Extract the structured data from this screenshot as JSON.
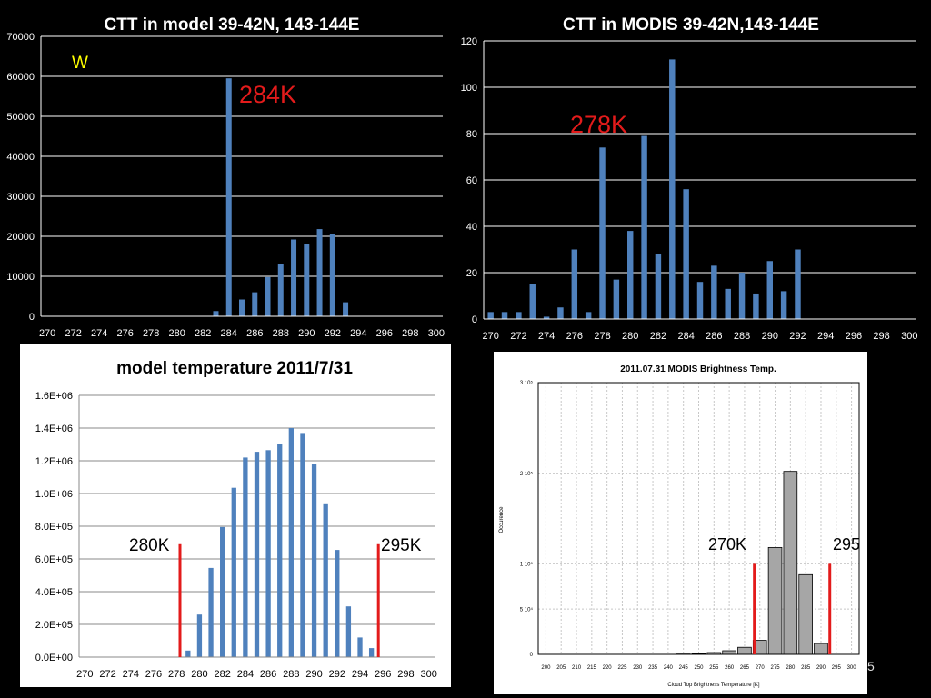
{
  "page_number": "5",
  "colors": {
    "bar_blue": "#4f81bd",
    "bar_gray": "#a6a6a6",
    "marker_red": "#e31b1b",
    "annotation_red": "#e31b1b",
    "annotation_yellow": "#ffff00"
  },
  "chart_data": [
    {
      "id": "model-ctt",
      "type": "bar",
      "title": "CTT in model 39-42N, 143-144E",
      "xlabel": "",
      "ylabel": "",
      "x": [
        270,
        271,
        272,
        273,
        274,
        275,
        276,
        277,
        278,
        279,
        280,
        281,
        282,
        283,
        284,
        285,
        286,
        287,
        288,
        289,
        290,
        291,
        292,
        293,
        294,
        295,
        296,
        297,
        298,
        299,
        300
      ],
      "values": [
        0,
        0,
        0,
        0,
        0,
        0,
        0,
        0,
        0,
        0,
        0,
        0,
        0,
        1300,
        59500,
        4200,
        6000,
        9800,
        13000,
        19200,
        18000,
        21800,
        20500,
        3500,
        0,
        0,
        0,
        0,
        0,
        0,
        0
      ],
      "ylim": [
        0,
        70000
      ],
      "yticks": [
        0,
        10000,
        20000,
        30000,
        40000,
        50000,
        60000,
        70000
      ],
      "ytick_labels": [
        "0",
        "10000",
        "20000",
        "30000",
        "40000",
        "50000",
        "60000",
        "70000"
      ],
      "xticks": [
        270,
        272,
        274,
        276,
        278,
        280,
        282,
        284,
        286,
        288,
        290,
        292,
        294,
        296,
        298,
        300
      ],
      "xtick_labels": [
        "270",
        "272",
        "274",
        "276",
        "278",
        "280",
        "282",
        "284",
        "286",
        "288",
        "290",
        "292",
        "294",
        "296",
        "298",
        "300"
      ],
      "grid": true,
      "annotations": [
        {
          "text": "284K",
          "color": "red"
        },
        {
          "text": "W",
          "color": "yellow"
        }
      ],
      "markers": []
    },
    {
      "id": "modis-ctt",
      "type": "bar",
      "title": "CTT in MODIS 39-42N,143-144E",
      "xlabel": "",
      "ylabel": "",
      "x": [
        270,
        271,
        272,
        273,
        274,
        275,
        276,
        277,
        278,
        279,
        280,
        281,
        282,
        283,
        284,
        285,
        286,
        287,
        288,
        289,
        290,
        291,
        292,
        293,
        294,
        295,
        296,
        297,
        298,
        299,
        300
      ],
      "values": [
        3,
        3,
        3,
        15,
        1,
        5,
        30,
        3,
        74,
        17,
        38,
        79,
        28,
        112,
        56,
        16,
        23,
        13,
        20,
        11,
        25,
        12,
        30,
        0,
        0,
        0,
        0,
        0,
        0,
        0,
        0
      ],
      "ylim": [
        0,
        120
      ],
      "yticks": [
        0,
        20,
        40,
        60,
        80,
        100,
        120
      ],
      "ytick_labels": [
        "0",
        "20",
        "40",
        "60",
        "80",
        "100",
        "120"
      ],
      "xticks": [
        270,
        272,
        274,
        276,
        278,
        280,
        282,
        284,
        286,
        288,
        290,
        292,
        294,
        296,
        298,
        300
      ],
      "xtick_labels": [
        "270",
        "272",
        "274",
        "276",
        "278",
        "280",
        "282",
        "284",
        "286",
        "288",
        "290",
        "292",
        "294",
        "296",
        "298",
        "300"
      ],
      "grid": true,
      "annotations": [
        {
          "text": "278K",
          "color": "red"
        }
      ],
      "markers": []
    },
    {
      "id": "model-temperature",
      "type": "bar",
      "title": "model temperature 2011/7/31",
      "xlabel": "",
      "ylabel": "",
      "x": [
        270,
        271,
        272,
        273,
        274,
        275,
        276,
        277,
        278,
        279,
        280,
        281,
        282,
        283,
        284,
        285,
        286,
        287,
        288,
        289,
        290,
        291,
        292,
        293,
        294,
        295,
        296,
        297,
        298,
        299,
        300
      ],
      "values": [
        0,
        0,
        0,
        0,
        0,
        0,
        0,
        0,
        0,
        40000,
        260000,
        545000,
        795000,
        1035000,
        1220000,
        1255000,
        1265000,
        1300000,
        1400000,
        1370000,
        1180000,
        940000,
        655000,
        310000,
        120000,
        55000,
        0,
        0,
        0,
        0,
        0
      ],
      "ylim": [
        0,
        1600000
      ],
      "yticks": [
        0,
        200000,
        400000,
        600000,
        800000,
        1000000,
        1200000,
        1400000,
        1600000
      ],
      "ytick_labels": [
        "0.0E+00",
        "2.0E+05",
        "4.0E+05",
        "6.0E+05",
        "8.0E+05",
        "1.0E+06",
        "1.2E+06",
        "1.4E+06",
        "1.6E+06"
      ],
      "xticks": [
        270,
        272,
        274,
        276,
        278,
        280,
        282,
        284,
        286,
        288,
        290,
        292,
        294,
        296,
        298,
        300
      ],
      "xtick_labels": [
        "270",
        "272",
        "274",
        "276",
        "278",
        "280",
        "282",
        "284",
        "286",
        "288",
        "290",
        "292",
        "294",
        "296",
        "298",
        "300"
      ],
      "grid": true,
      "annotations": [
        {
          "text": "280K",
          "color": "black"
        },
        {
          "text": "295K",
          "color": "black"
        }
      ],
      "markers": [
        {
          "x": 278.3,
          "y": 690000
        },
        {
          "x": 295.6,
          "y": 690000
        }
      ]
    },
    {
      "id": "modis-brightness",
      "type": "bar",
      "title": "2011.07.31 MODIS Brightness Temp.",
      "xlabel": "Cloud Top Brightness Temperature [K]",
      "ylabel": "Occurence",
      "x": [
        245,
        250,
        255,
        260,
        265,
        270,
        275,
        280,
        285,
        290
      ],
      "values": [
        400,
        800,
        2000,
        4000,
        7800,
        15500,
        118000,
        202000,
        88000,
        12000
      ],
      "ylim": [
        0,
        300000
      ],
      "xlim": [
        197.5,
        302.5
      ],
      "yticks": [
        0,
        50000,
        100000,
        200000,
        300000
      ],
      "ytick_labels": [
        "0",
        "5 10⁴",
        "1 10⁵",
        "2 10⁵",
        "3 10⁵"
      ],
      "xticks": [
        200,
        205,
        210,
        215,
        220,
        225,
        230,
        235,
        240,
        245,
        250,
        255,
        260,
        265,
        270,
        275,
        280,
        285,
        290,
        295,
        300
      ],
      "xtick_labels": [
        "200",
        "205",
        "210",
        "215",
        "220",
        "225",
        "230",
        "235",
        "240",
        "245",
        "250",
        "255",
        "260",
        "265",
        "270",
        "275",
        "280",
        "285",
        "290",
        "295",
        "300"
      ],
      "grid": true,
      "annotations": [
        {
          "text": "270K",
          "color": "black"
        },
        {
          "text": "295",
          "color": "black"
        }
      ],
      "markers": [
        {
          "x": 268.2,
          "y": 100000
        },
        {
          "x": 292.9,
          "y": 100000
        }
      ]
    }
  ]
}
